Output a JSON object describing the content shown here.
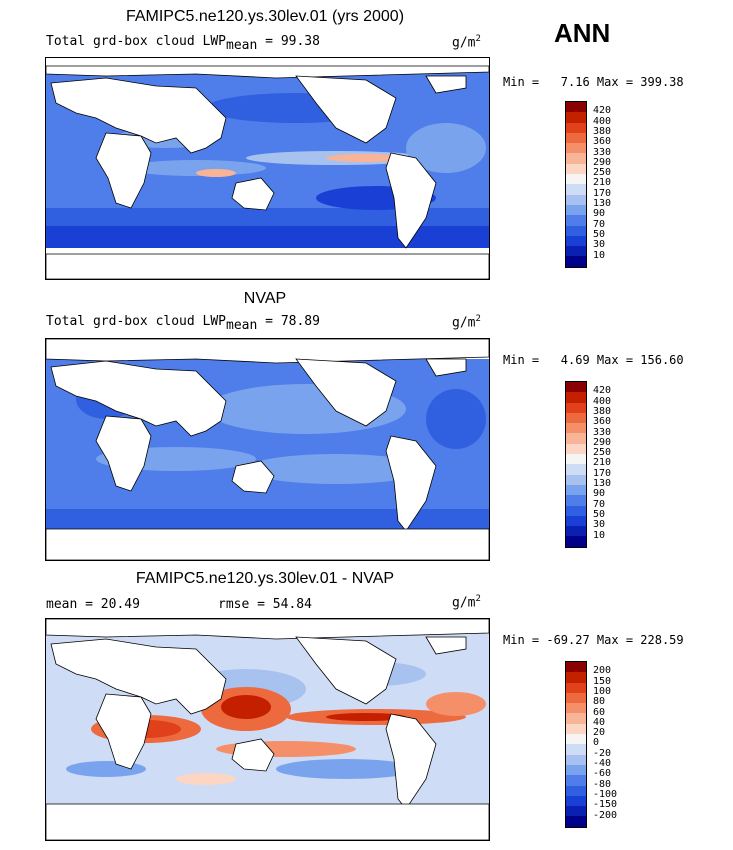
{
  "season": "ANN",
  "panels": [
    {
      "title": "FAMIPC5.ne120.ys.30lev.01 (yrs 2000)",
      "variable": "Total grd-box cloud LWP",
      "stat_label": "mean",
      "stat_sep": " =  ",
      "stat_value": "99.38",
      "units_base": "g/m",
      "units_exp": "2",
      "minmax": "Min =   7.16 Max = 399.38",
      "colorbar_labels": [
        "420",
        "400",
        "380",
        "360",
        "330",
        "290",
        "250",
        "210",
        "170",
        "130",
        "90",
        "70",
        "50",
        "30",
        "10"
      ],
      "colors": [
        "#8b0000",
        "#c42000",
        "#e0401a",
        "#ec6a3e",
        "#f58f6a",
        "#f9b396",
        "#fcd6c2",
        "#f5f5f5",
        "#cfdcf5",
        "#a8c2f0",
        "#7aa3ee",
        "#4f7eea",
        "#3060e0",
        "#1a3fd4",
        "#0b1fb0",
        "#00008b"
      ]
    },
    {
      "title": "NVAP",
      "variable": "Total grd-box cloud LWP",
      "stat_label": "mean",
      "stat_sep": " =  ",
      "stat_value": "78.89",
      "units_base": "g/m",
      "units_exp": "2",
      "minmax": "Min =   4.69 Max = 156.60",
      "colorbar_labels": [
        "420",
        "400",
        "380",
        "360",
        "330",
        "290",
        "250",
        "210",
        "170",
        "130",
        "90",
        "70",
        "50",
        "30",
        "10"
      ],
      "colors": [
        "#8b0000",
        "#c42000",
        "#e0401a",
        "#ec6a3e",
        "#f58f6a",
        "#f9b396",
        "#fcd6c2",
        "#f5f5f5",
        "#cfdcf5",
        "#a8c2f0",
        "#7aa3ee",
        "#4f7eea",
        "#3060e0",
        "#1a3fd4",
        "#0b1fb0",
        "#00008b"
      ]
    },
    {
      "title": "FAMIPC5.ne120.ys.30lev.01 - NVAP",
      "mean_text": "mean =  20.49",
      "rmse_text": "rmse =  54.84",
      "units_base": "g/m",
      "units_exp": "2",
      "minmax": "Min = -69.27 Max = 228.59",
      "colorbar_labels": [
        "200",
        "150",
        "100",
        "80",
        "60",
        "40",
        "20",
        "0",
        "-20",
        "-40",
        "-60",
        "-80",
        "-100",
        "-150",
        "-200"
      ],
      "colors": [
        "#8b0000",
        "#c42000",
        "#e0401a",
        "#ec6a3e",
        "#f58f6a",
        "#f9b396",
        "#fcd6c2",
        "#f5f5f5",
        "#cfdcf5",
        "#a8c2f0",
        "#7aa3ee",
        "#4f7eea",
        "#3060e0",
        "#1a3fd4",
        "#0b1fb0",
        "#00008b"
      ]
    }
  ]
}
